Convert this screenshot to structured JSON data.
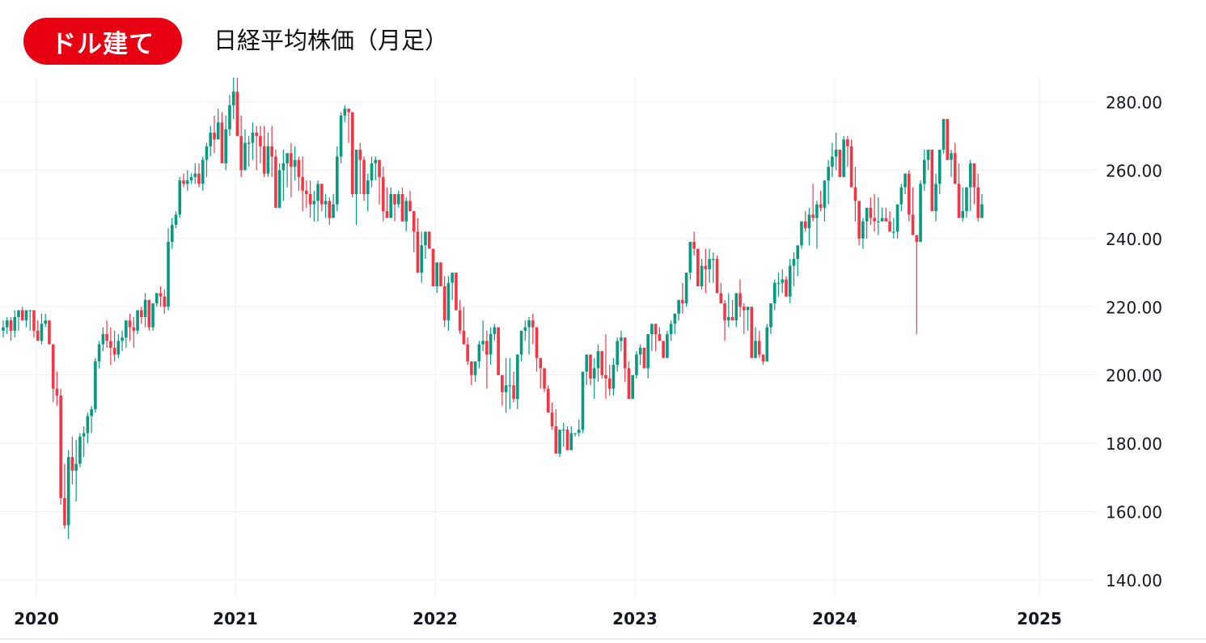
{
  "header": {
    "badge_label": "ドル建て",
    "title": "日経平均株価（月足）",
    "badge_color": "#e60012"
  },
  "colors": {
    "up": "#089981",
    "down": "#f23645",
    "grid": "#efefef",
    "axis_text": "#131722"
  },
  "chart_data": {
    "type": "candlestick",
    "title": "日経平均株価（月足）",
    "subtitle": "ドル建て",
    "xlabel": "",
    "ylabel": "",
    "ylim": [
      133.5,
      289
    ],
    "y_ticks": [
      "280.00",
      "260.00",
      "240.00",
      "220.00",
      "200.00",
      "180.00",
      "160.00",
      "140.00"
    ],
    "y_tick_values": [
      280,
      260,
      240,
      220,
      200,
      180,
      160,
      140
    ],
    "x_ticks": [
      "2020",
      "2021",
      "2022",
      "2023",
      "2024",
      "2025"
    ],
    "x_tick_positions": [
      45,
      291,
      538,
      785,
      1032,
      1285
    ],
    "grid": true,
    "axis_position": "right",
    "candle_start_x": 4,
    "candle_spacing": 4.745,
    "candles": [
      [
        213,
        216,
        211,
        214
      ],
      [
        214,
        217,
        212,
        216
      ],
      [
        216,
        217,
        210,
        213
      ],
      [
        213,
        219,
        211,
        217
      ],
      [
        217,
        218,
        213,
        219
      ],
      [
        219,
        220,
        217,
        216
      ],
      [
        216,
        217,
        214,
        219
      ],
      [
        219,
        219,
        213,
        219
      ],
      [
        219,
        219,
        211,
        213
      ],
      [
        213,
        216,
        211,
        210
      ],
      [
        210,
        218,
        209,
        215
      ],
      [
        215,
        218,
        214,
        216
      ],
      [
        216,
        216,
        209,
        209
      ],
      [
        209,
        209,
        192,
        196
      ],
      [
        196,
        201,
        191,
        194
      ],
      [
        194,
        196,
        162,
        164
      ],
      [
        164,
        174,
        155,
        156
      ],
      [
        156,
        178,
        152,
        176
      ],
      [
        176,
        182,
        168,
        172
      ],
      [
        172,
        181,
        163,
        174
      ],
      [
        174,
        183,
        173,
        182
      ],
      [
        182,
        185,
        176,
        183
      ],
      [
        183,
        189,
        180,
        188
      ],
      [
        188,
        191,
        183,
        190
      ],
      [
        190,
        205,
        189,
        204
      ],
      [
        204,
        210,
        202,
        209
      ],
      [
        209,
        214,
        207,
        212
      ],
      [
        212,
        216,
        208,
        210
      ],
      [
        210,
        214,
        203,
        208
      ],
      [
        208,
        213,
        204,
        206
      ],
      [
        206,
        212,
        205,
        210
      ],
      [
        210,
        213,
        207,
        211
      ],
      [
        211,
        216,
        208,
        216
      ],
      [
        216,
        218,
        210,
        214
      ],
      [
        214,
        217,
        208,
        213
      ],
      [
        213,
        219,
        212,
        219
      ],
      [
        219,
        220,
        215,
        217
      ],
      [
        217,
        224,
        214,
        222
      ],
      [
        222,
        222,
        213,
        214
      ],
      [
        214,
        221,
        213,
        221
      ],
      [
        221,
        224,
        220,
        224
      ],
      [
        224,
        226,
        220,
        223
      ],
      [
        223,
        225,
        218,
        220
      ],
      [
        220,
        243,
        219,
        239
      ],
      [
        239,
        246,
        237,
        244
      ],
      [
        244,
        248,
        243,
        247
      ],
      [
        247,
        258,
        246,
        257
      ],
      [
        257,
        259,
        255,
        256
      ],
      [
        256,
        260,
        254,
        257
      ],
      [
        257,
        259,
        256,
        258
      ],
      [
        258,
        262,
        256,
        259
      ],
      [
        259,
        262,
        255,
        256
      ],
      [
        256,
        264,
        254,
        263
      ],
      [
        263,
        268,
        258,
        267
      ],
      [
        267,
        273,
        264,
        271
      ],
      [
        271,
        276,
        265,
        269
      ],
      [
        269,
        278,
        270,
        274
      ],
      [
        274,
        277,
        262,
        262
      ],
      [
        262,
        276,
        260,
        272
      ],
      [
        272,
        282,
        270,
        279
      ],
      [
        279,
        289,
        275,
        283
      ],
      [
        283,
        290,
        276,
        270
      ],
      [
        270,
        276,
        258,
        260
      ],
      [
        260,
        272,
        262,
        268
      ],
      [
        268,
        270,
        261,
        268
      ],
      [
        268,
        274,
        263,
        271
      ],
      [
        271,
        273,
        260,
        270
      ],
      [
        270,
        273,
        262,
        267
      ],
      [
        267,
        273,
        258,
        259
      ],
      [
        259,
        271,
        258,
        267
      ],
      [
        267,
        273,
        258,
        264
      ],
      [
        264,
        266,
        249,
        249
      ],
      [
        249,
        262,
        254,
        260
      ],
      [
        260,
        266,
        251,
        262
      ],
      [
        262,
        264,
        255,
        265
      ],
      [
        265,
        268,
        252,
        261
      ],
      [
        261,
        267,
        257,
        263
      ],
      [
        263,
        264,
        254,
        258
      ],
      [
        258,
        264,
        248,
        254
      ],
      [
        254,
        257,
        249,
        253
      ],
      [
        253,
        257,
        246,
        250
      ],
      [
        250,
        254,
        245,
        251
      ],
      [
        251,
        257,
        245,
        256
      ],
      [
        256,
        256,
        248,
        250
      ],
      [
        250,
        253,
        246,
        251
      ],
      [
        251,
        252,
        244,
        246
      ],
      [
        246,
        253,
        247,
        250
      ],
      [
        250,
        267,
        248,
        264
      ],
      [
        264,
        277,
        262,
        276
      ],
      [
        276,
        279,
        274,
        278
      ],
      [
        278,
        278,
        268,
        277
      ],
      [
        277,
        277,
        252,
        253
      ],
      [
        253,
        266,
        244,
        266
      ],
      [
        266,
        268,
        253,
        263
      ],
      [
        263,
        264,
        251,
        253
      ],
      [
        253,
        259,
        248,
        257
      ],
      [
        257,
        264,
        255,
        262
      ],
      [
        262,
        264,
        257,
        263
      ],
      [
        263,
        263,
        250,
        258
      ],
      [
        258,
        261,
        245,
        248
      ],
      [
        248,
        255,
        246,
        246
      ],
      [
        246,
        255,
        248,
        253
      ],
      [
        253,
        252,
        245,
        250
      ],
      [
        250,
        254,
        249,
        253
      ],
      [
        253,
        255,
        245,
        245
      ],
      [
        245,
        252,
        242,
        251
      ],
      [
        251,
        254,
        248,
        248
      ],
      [
        248,
        248,
        236,
        242
      ],
      [
        242,
        246,
        237,
        230
      ],
      [
        230,
        242,
        227,
        238
      ],
      [
        238,
        241,
        234,
        242
      ],
      [
        242,
        241,
        238,
        237
      ],
      [
        237,
        236,
        226,
        226
      ],
      [
        226,
        233,
        224,
        233
      ],
      [
        233,
        230,
        228,
        226
      ],
      [
        226,
        229,
        214,
        216
      ],
      [
        216,
        229,
        213,
        227
      ],
      [
        227,
        230,
        222,
        230
      ],
      [
        230,
        229,
        224,
        219
      ],
      [
        219,
        222,
        212,
        213
      ],
      [
        213,
        220,
        210,
        209
      ],
      [
        209,
        211,
        203,
        204
      ],
      [
        204,
        204,
        197,
        200
      ],
      [
        200,
        204,
        198,
        204
      ],
      [
        204,
        210,
        202,
        209
      ],
      [
        209,
        216,
        207,
        210
      ],
      [
        210,
        213,
        196,
        206
      ],
      [
        206,
        214,
        203,
        212
      ],
      [
        212,
        215,
        210,
        214
      ],
      [
        214,
        212,
        200,
        200
      ],
      [
        200,
        200,
        191,
        195
      ],
      [
        195,
        205,
        189,
        197
      ],
      [
        197,
        205,
        190,
        197
      ],
      [
        197,
        201,
        192,
        193
      ],
      [
        193,
        206,
        190,
        206
      ],
      [
        206,
        212,
        204,
        213
      ],
      [
        213,
        216,
        210,
        214
      ],
      [
        214,
        217,
        206,
        216
      ],
      [
        216,
        218,
        209,
        214
      ],
      [
        214,
        214,
        201,
        205
      ],
      [
        205,
        201,
        196,
        202
      ],
      [
        202,
        199,
        195,
        196
      ],
      [
        196,
        197,
        190,
        189
      ],
      [
        189,
        192,
        184,
        185
      ],
      [
        185,
        190,
        177,
        177
      ],
      [
        177,
        184,
        176,
        184
      ],
      [
        184,
        186,
        179,
        184
      ],
      [
        184,
        185,
        180,
        178
      ],
      [
        178,
        185,
        180,
        183
      ],
      [
        183,
        180,
        182,
        183
      ],
      [
        183,
        187,
        182,
        184
      ],
      [
        184,
        201,
        183,
        201
      ],
      [
        201,
        206,
        197,
        206
      ],
      [
        206,
        205,
        197,
        199
      ],
      [
        199,
        205,
        193,
        202
      ],
      [
        202,
        209,
        198,
        207
      ],
      [
        207,
        207,
        199,
        200
      ],
      [
        200,
        212,
        193,
        199
      ],
      [
        199,
        203,
        194,
        196
      ],
      [
        196,
        205,
        194,
        203
      ],
      [
        203,
        211,
        201,
        210
      ],
      [
        210,
        213,
        207,
        211
      ],
      [
        211,
        206,
        198,
        202
      ],
      [
        202,
        204,
        193,
        193
      ],
      [
        193,
        199,
        200,
        200
      ],
      [
        200,
        207,
        199,
        206
      ],
      [
        206,
        209,
        203,
        208
      ],
      [
        208,
        208,
        202,
        202
      ],
      [
        202,
        212,
        199,
        212
      ],
      [
        212,
        214,
        207,
        215
      ],
      [
        215,
        213,
        207,
        212
      ],
      [
        212,
        214,
        211,
        210
      ],
      [
        210,
        210,
        205,
        205
      ],
      [
        205,
        213,
        208,
        212
      ],
      [
        212,
        216,
        210,
        215
      ],
      [
        215,
        217,
        212,
        218
      ],
      [
        218,
        222,
        216,
        222
      ],
      [
        222,
        227,
        218,
        221
      ],
      [
        221,
        229,
        220,
        230
      ],
      [
        230,
        235,
        228,
        239
      ],
      [
        239,
        242,
        235,
        237
      ],
      [
        237,
        237,
        227,
        226
      ],
      [
        226,
        234,
        225,
        232
      ],
      [
        232,
        237,
        224,
        231
      ],
      [
        231,
        237,
        227,
        234
      ],
      [
        234,
        236,
        227,
        234
      ],
      [
        234,
        235,
        228,
        224
      ],
      [
        224,
        227,
        222,
        221
      ],
      [
        221,
        222,
        210,
        216
      ],
      [
        216,
        224,
        214,
        217
      ],
      [
        217,
        222,
        216,
        216
      ],
      [
        216,
        223,
        214,
        224
      ],
      [
        224,
        228,
        217,
        220
      ],
      [
        220,
        221,
        212,
        219
      ],
      [
        219,
        217,
        213,
        220
      ],
      [
        220,
        216,
        208,
        205
      ],
      [
        205,
        214,
        205,
        210
      ],
      [
        210,
        213,
        205,
        206
      ],
      [
        206,
        206,
        203,
        204
      ],
      [
        204,
        215,
        210,
        214
      ],
      [
        214,
        219,
        212,
        221
      ],
      [
        221,
        228,
        219,
        227
      ],
      [
        227,
        230,
        223,
        227
      ],
      [
        227,
        231,
        224,
        228
      ],
      [
        228,
        229,
        223,
        223
      ],
      [
        223,
        234,
        221,
        232
      ],
      [
        232,
        236,
        226,
        234
      ],
      [
        234,
        237,
        229,
        238
      ],
      [
        238,
        243,
        237,
        245
      ],
      [
        245,
        248,
        242,
        243
      ],
      [
        243,
        249,
        238,
        247
      ],
      [
        247,
        256,
        245,
        246
      ],
      [
        246,
        251,
        237,
        250
      ],
      [
        250,
        254,
        248,
        249
      ],
      [
        249,
        255,
        245,
        257
      ],
      [
        257,
        263,
        250,
        261
      ],
      [
        261,
        268,
        258,
        264
      ],
      [
        264,
        271,
        260,
        266
      ],
      [
        266,
        266,
        258,
        258
      ],
      [
        258,
        270,
        258,
        269
      ],
      [
        269,
        270,
        261,
        267
      ],
      [
        267,
        269,
        256,
        255
      ],
      [
        255,
        261,
        245,
        251
      ],
      [
        251,
        248,
        238,
        240
      ],
      [
        240,
        246,
        237,
        245
      ],
      [
        245,
        249,
        240,
        249
      ],
      [
        249,
        252,
        244,
        246
      ],
      [
        246,
        253,
        242,
        245
      ],
      [
        245,
        252,
        241,
        245
      ],
      [
        245,
        249,
        246,
        246
      ],
      [
        246,
        249,
        245,
        245
      ],
      [
        245,
        248,
        242,
        242
      ],
      [
        242,
        246,
        240,
        242
      ],
      [
        242,
        250,
        240,
        250
      ],
      [
        250,
        256,
        248,
        255
      ],
      [
        255,
        259,
        253,
        259
      ],
      [
        259,
        260,
        245,
        247
      ],
      [
        247,
        255,
        244,
        241
      ],
      [
        241,
        241,
        212,
        239
      ],
      [
        239,
        257,
        243,
        256
      ],
      [
        256,
        266,
        254,
        263
      ],
      [
        263,
        266,
        260,
        266
      ],
      [
        266,
        266,
        248,
        248
      ],
      [
        248,
        259,
        245,
        256
      ],
      [
        256,
        263,
        253,
        266
      ],
      [
        266,
        275,
        265,
        275
      ],
      [
        275,
        275,
        263,
        263
      ],
      [
        263,
        266,
        258,
        265
      ],
      [
        265,
        268,
        257,
        256
      ],
      [
        256,
        262,
        246,
        246
      ],
      [
        246,
        255,
        245,
        248
      ],
      [
        248,
        252,
        246,
        255
      ],
      [
        255,
        263,
        248,
        262
      ],
      [
        262,
        262,
        250,
        255
      ],
      [
        255,
        259,
        245,
        246
      ],
      [
        246,
        253,
        251,
        250
      ]
    ]
  },
  "legend": []
}
